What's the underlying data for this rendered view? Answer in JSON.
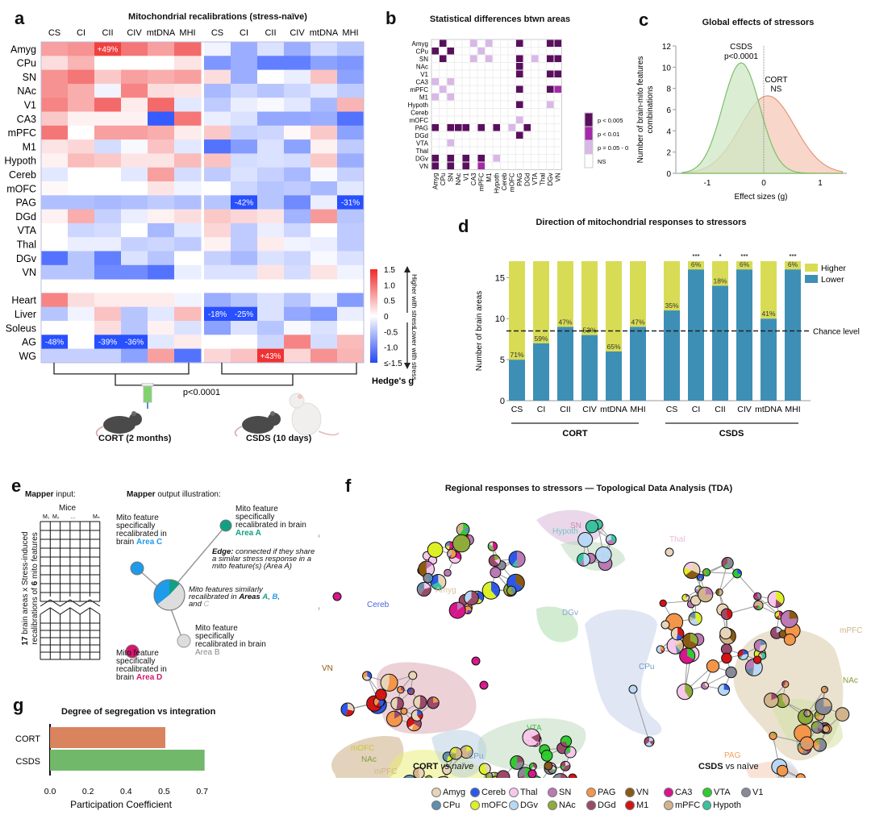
{
  "panels": {
    "a": {
      "label": "a",
      "title": "Mitochondrial recalibrations (stress-naïve)",
      "columns": [
        "CS",
        "CI",
        "CII",
        "CIV",
        "mtDNA",
        "MHI"
      ],
      "brain_rows": [
        "Amyg",
        "CPu",
        "SN",
        "NAc",
        "V1",
        "CA3",
        "mPFC",
        "M1",
        "Hypoth",
        "Cereb",
        "mOFC",
        "PAG",
        "DGd",
        "VTA",
        "Thal",
        "DGv",
        "VN"
      ],
      "body_rows": [
        "Heart",
        "Liver",
        "Soleus",
        "AG",
        "WG"
      ],
      "cort_values": [
        [
          0.7,
          0.8,
          1.4,
          1.0,
          0.7,
          1.1
        ],
        [
          0.25,
          0.55,
          0,
          0,
          0,
          0.2
        ],
        [
          0.8,
          1.0,
          0.4,
          0.7,
          0.6,
          0.7
        ],
        [
          0.8,
          0.6,
          -0.1,
          0.9,
          0.25,
          0.2
        ],
        [
          0.9,
          0.6,
          1.1,
          0.15,
          1.1,
          -0.2
        ],
        [
          0.4,
          0.1,
          0.1,
          0.1,
          -1.4,
          1.0
        ],
        [
          1.0,
          0,
          0.7,
          0.7,
          0.6,
          0.15
        ],
        [
          0.2,
          0.3,
          -0.3,
          -0.05,
          0.45,
          -0.2
        ],
        [
          0.1,
          0.5,
          0.4,
          0.2,
          0.2,
          0.5
        ],
        [
          -0.2,
          0,
          0,
          -0.2,
          0.7,
          -0.3
        ],
        [
          0.05,
          0,
          0,
          0,
          0.2,
          -0.1
        ],
        [
          -0.55,
          -0.55,
          -0.6,
          -0.55,
          -0.45,
          -0.55
        ],
        [
          0.1,
          0.6,
          -0.4,
          -0.15,
          0.1,
          0.25
        ],
        [
          0,
          -0.35,
          -0.3,
          0,
          -0.6,
          -0.2
        ],
        [
          0,
          -0.15,
          -0.15,
          -0.4,
          -0.35,
          -0.45
        ],
        [
          -1.2,
          -0.5,
          -1.1,
          -0.25,
          -0.5,
          0
        ],
        [
          -0.5,
          -0.5,
          -1.0,
          -1.0,
          -1.2,
          -0.15
        ],
        [
          0.9,
          0.25,
          0.15,
          0.15,
          0.15,
          -0.1
        ],
        [
          -0.5,
          -0.1,
          0.45,
          -0.5,
          -0.2,
          0.5
        ],
        [
          0,
          0,
          0.25,
          -0.5,
          0.1,
          -0.25
        ],
        [
          -1.5,
          0,
          -1.5,
          -1.5,
          -0.2,
          0.15
        ],
        [
          -0.4,
          -0.4,
          -0.4,
          -0.8,
          0.7,
          -1.2
        ]
      ],
      "csds_values": [
        [
          -0.1,
          -0.7,
          -0.25,
          -0.7,
          -0.3,
          -0.5
        ],
        [
          -0.9,
          -0.7,
          -1.1,
          -1.1,
          -0.8,
          -0.9
        ],
        [
          0.25,
          -0.7,
          0,
          -0.15,
          0.45,
          -0.8
        ],
        [
          -0.6,
          -0.35,
          -0.5,
          -0.35,
          -0.2,
          -0.45
        ],
        [
          -0.45,
          -0.15,
          -0.05,
          -0.2,
          -0.6,
          0.55
        ],
        [
          -0.15,
          -0.25,
          -0.75,
          -0.75,
          -0.7,
          -1.2
        ],
        [
          0.4,
          -0.4,
          -0.35,
          0.05,
          0.4,
          -0.8
        ],
        [
          -1.2,
          -0.85,
          -0.25,
          -0.8,
          0.1,
          -0.45
        ],
        [
          0.45,
          -0.3,
          -0.25,
          -0.3,
          0.4,
          -0.7
        ],
        [
          -0.45,
          -0.25,
          -0.4,
          -0.6,
          -0.05,
          -0.4
        ],
        [
          0,
          -0.35,
          -0.5,
          -0.45,
          -0.6,
          -0.2
        ],
        [
          -0.5,
          -1.5,
          -0.5,
          -1.0,
          -0.15,
          -1.5
        ],
        [
          0.4,
          0.3,
          0.2,
          -0.65,
          0.75,
          -0.5
        ],
        [
          0.3,
          -0.45,
          -0.15,
          -0.35,
          0,
          -0.45
        ],
        [
          0.1,
          -0.45,
          0.15,
          -0.1,
          -0.15,
          -0.45
        ],
        [
          -0.4,
          -0.6,
          -0.25,
          -0.35,
          -0.05,
          -0.25
        ],
        [
          -0.25,
          -0.25,
          0.2,
          -0.3,
          0.2,
          -0.1
        ],
        [
          -0.7,
          -0.5,
          -0.25,
          -0.5,
          -0.15,
          -0.85
        ],
        [
          -1.5,
          -1.5,
          -0.25,
          -0.75,
          -0.9,
          -0.15
        ],
        [
          -0.8,
          -0.25,
          -0.5,
          -0.05,
          -0.25,
          0
        ],
        [
          0,
          0,
          -0.35,
          0.9,
          -0.3,
          0.5
        ],
        [
          0.3,
          0.45,
          1.5,
          0.3,
          0.8,
          0.55
        ]
      ],
      "annotations": [
        {
          "group": "CORT",
          "row": "Amyg",
          "col": "CII",
          "text": "+49%"
        },
        {
          "group": "CSDS",
          "row": "PAG",
          "col": "CI",
          "text": "-42%"
        },
        {
          "group": "CSDS",
          "row": "PAG",
          "col": "MHI",
          "text": "-31%"
        },
        {
          "group": "CSDS",
          "row": "Liver",
          "col": "CS",
          "text": "-18%"
        },
        {
          "group": "CSDS",
          "row": "Liver",
          "col": "CI",
          "text": "-25%"
        },
        {
          "group": "CORT",
          "row": "AG",
          "col": "CS",
          "text": "-48%"
        },
        {
          "group": "CORT",
          "row": "AG",
          "col": "CII",
          "text": "-39%"
        },
        {
          "group": "CORT",
          "row": "AG",
          "col": "CIV",
          "text": "-36%"
        },
        {
          "group": "CSDS",
          "row": "WG",
          "col": "CII",
          "text": "+43%"
        }
      ],
      "colorbar": {
        "ticks": [
          "1.5",
          "1.0",
          "0.5",
          "0",
          "-0.5",
          "-1.0",
          "≤-1.5"
        ],
        "title": "Hedge's g",
        "higher": "Higher with stress",
        "lower": "Lower with stress"
      },
      "pvalue": "p<0.0001",
      "cort_label": "CORT (2 months)",
      "csds_label": "CSDS (10 days)"
    },
    "b": {
      "label": "b",
      "title": "Statistical differences btwn areas",
      "areas": [
        "Amyg",
        "CPu",
        "SN",
        "NAc",
        "V1",
        "CA3",
        "mPFC",
        "M1",
        "Hypoth",
        "Cereb",
        "mOFC",
        "PAG",
        "DGd",
        "VTA",
        "Thal",
        "DGv",
        "VN"
      ],
      "cells": [
        [
          0,
          1,
          3
        ],
        [
          0,
          5,
          1
        ],
        [
          0,
          7,
          1
        ],
        [
          0,
          11,
          3
        ],
        [
          0,
          15,
          3
        ],
        [
          0,
          16,
          3
        ],
        [
          1,
          0,
          3
        ],
        [
          1,
          2,
          3
        ],
        [
          1,
          6,
          1
        ],
        [
          2,
          1,
          3
        ],
        [
          2,
          5,
          1
        ],
        [
          2,
          7,
          1
        ],
        [
          2,
          11,
          3
        ],
        [
          2,
          13,
          1
        ],
        [
          2,
          15,
          3
        ],
        [
          2,
          16,
          3
        ],
        [
          3,
          11,
          3
        ],
        [
          4,
          11,
          3
        ],
        [
          4,
          15,
          3
        ],
        [
          4,
          16,
          3
        ],
        [
          5,
          0,
          1
        ],
        [
          5,
          2,
          1
        ],
        [
          6,
          1,
          1
        ],
        [
          6,
          11,
          3
        ],
        [
          6,
          15,
          3
        ],
        [
          6,
          16,
          2
        ],
        [
          7,
          0,
          1
        ],
        [
          7,
          2,
          1
        ],
        [
          8,
          11,
          3
        ],
        [
          8,
          15,
          1
        ],
        [
          10,
          11,
          1
        ],
        [
          11,
          0,
          3
        ],
        [
          11,
          2,
          3
        ],
        [
          11,
          3,
          3
        ],
        [
          11,
          4,
          3
        ],
        [
          11,
          6,
          3
        ],
        [
          11,
          8,
          3
        ],
        [
          11,
          10,
          1
        ],
        [
          11,
          12,
          3
        ],
        [
          12,
          11,
          3
        ],
        [
          13,
          2,
          1
        ],
        [
          15,
          0,
          3
        ],
        [
          15,
          2,
          3
        ],
        [
          15,
          4,
          3
        ],
        [
          15,
          6,
          3
        ],
        [
          15,
          8,
          1
        ],
        [
          16,
          0,
          3
        ],
        [
          16,
          2,
          3
        ],
        [
          16,
          4,
          3
        ],
        [
          16,
          6,
          2
        ]
      ],
      "legend": [
        "p < 0.005",
        "p < 0.01",
        "p = 0.05 - 0.01",
        "NS"
      ],
      "colors": [
        "#5a0f5e",
        "#a52aa8",
        "#d9b8e8",
        "#ffffff"
      ]
    },
    "c": {
      "label": "c",
      "title": "Global effects of stressors"
    },
    "d": {
      "label": "d",
      "title": "Direction of mitochondrial responses to stressors"
    },
    "e": {
      "label": "e",
      "input_title_bold": "Mapper",
      "input_title_rest": " input:",
      "output_title_bold": "Mapper",
      "output_title_rest": " output illustration:",
      "mice_label": "Mice",
      "mice_cols": [
        "M₁",
        "M₂",
        "…",
        "Mₙ"
      ],
      "ylabel_line1_bold": "17",
      "ylabel_line1_rest": " brain areas x Stress-induced",
      "ylabel_line2_pre": "recalibrations of ",
      "ylabel_line2_bold": "6",
      "ylabel_line2_post": " mito features",
      "node_c": {
        "text": "Mito feature specifically recalibrated in brain",
        "area": "Area C",
        "color": "#1e9be9"
      },
      "node_a": {
        "text": "Mito feature specifically recalibrated in brain",
        "area": "Area A",
        "color": "#12a085"
      },
      "node_b": {
        "text": "Mito feature specifically recalibrated in brain",
        "area": "Area B",
        "color": "#cccccc"
      },
      "node_d": {
        "text": "Mito feature specifically recalibrated in brain",
        "area": "Area D",
        "color": "#d4166f"
      },
      "edge_bold": "Edge:",
      "edge_text": " connected if they share a similar stress response in a mito feature(s) (Area A)",
      "center_text": "Mito features similarly recalibrated in ",
      "center_bold": "Areas",
      "center_a": "A",
      "center_b": "B",
      "center_and": ", and ",
      "center_c": "C"
    },
    "f": {
      "label": "f",
      "title": "Regional responses to stressors — Topological Data Analysis (TDA)",
      "cort_caption_bold": "CORT",
      "cort_caption_rest": " vs naïve",
      "csds_caption_bold": "CSDS",
      "csds_caption_rest": " vs naïve",
      "cort_region_labels": [
        {
          "text": "SN",
          "color": "#c48ab8"
        },
        {
          "text": "Hypoth",
          "color": "#6fc7c7"
        },
        {
          "text": "Amyg",
          "color": "#d8c2a0"
        },
        {
          "text": "Cereb",
          "color": "#4867d6"
        },
        {
          "text": "DGv",
          "color": "#8aa6cc"
        },
        {
          "text": "VN",
          "color": "#8b5a14"
        },
        {
          "text": "VTA",
          "color": "#4cbb4c"
        },
        {
          "text": "Thal",
          "color": "#efb7dd"
        },
        {
          "text": "mOFC",
          "color": "#c6c734"
        },
        {
          "text": "NAc",
          "color": "#8a9a3a"
        },
        {
          "text": "mPFC",
          "color": "#d2b48c"
        },
        {
          "text": "CPu",
          "color": "#6e9fbf"
        }
      ],
      "csds_region_labels": [
        {
          "text": "Thal",
          "color": "#efb7dd"
        },
        {
          "text": "CPu",
          "color": "#6e9fbf"
        },
        {
          "text": "mPFC",
          "color": "#d2b48c"
        },
        {
          "text": "NAc",
          "color": "#8a9a3a"
        },
        {
          "text": "PAG",
          "color": "#f0a060"
        },
        {
          "text": "DGv",
          "color": "#8aa6cc"
        }
      ],
      "legend": [
        {
          "name": "Amyg",
          "color": "#e8d5b8"
        },
        {
          "name": "Cereb",
          "color": "#2b58e8"
        },
        {
          "name": "Thal",
          "color": "#f8c8ec"
        },
        {
          "name": "SN",
          "color": "#bb79b5"
        },
        {
          "name": "PAG",
          "color": "#f4964a"
        },
        {
          "name": "VN",
          "color": "#8a5a12"
        },
        {
          "name": "CA3",
          "color": "#d6168b"
        },
        {
          "name": "VTA",
          "color": "#2ecc2e"
        },
        {
          "name": "V1",
          "color": "#878a96"
        },
        {
          "name": "CPu",
          "color": "#5e8faf"
        },
        {
          "name": "mOFC",
          "color": "#dcf026"
        },
        {
          "name": "DGv",
          "color": "#b9d8f5"
        },
        {
          "name": "NAc",
          "color": "#8fab3a"
        },
        {
          "name": "DGd",
          "color": "#9a4a6a"
        },
        {
          "name": "M1",
          "color": "#d41414"
        },
        {
          "name": "mPFC",
          "color": "#d2b48c"
        },
        {
          "name": "Hypoth",
          "color": "#38c2a0"
        }
      ]
    },
    "g": {
      "label": "g",
      "title": "Degree of segregation vs integration"
    }
  },
  "chart_data": [
    {
      "id": "c",
      "type": "area",
      "title": "Global effects of stressors",
      "xlabel": "Effect sizes (g)",
      "ylabel": "Number of brain-mito features combinations",
      "xlim": [
        -1.5,
        1.4
      ],
      "ylim": [
        0,
        12
      ],
      "xticks": [
        "-1",
        "0",
        "1"
      ],
      "yticks": [
        "0",
        "2",
        "4",
        "6",
        "8",
        "10",
        "12"
      ],
      "series": [
        {
          "name": "CSDS",
          "annotation": "p<0.0001",
          "mean": -0.4,
          "sd": 0.33,
          "peak": 10.4,
          "color": "#7bbf6a",
          "fill": "#cfe8c4"
        },
        {
          "name": "CORT",
          "annotation": "NS",
          "mean": 0.07,
          "sd": 0.48,
          "peak": 7.3,
          "color": "#e4957a",
          "fill": "#f5c9b8"
        }
      ],
      "reference_line_x": 0
    },
    {
      "id": "d",
      "type": "bar",
      "stacked": true,
      "title": "Direction of mitochondrial responses to stressors",
      "ylabel": "Number of brain areas",
      "ylim": [
        0,
        17
      ],
      "yticks": [
        "0",
        "5",
        "10",
        "15"
      ],
      "groups": [
        "CORT",
        "CSDS"
      ],
      "categories": [
        "CS",
        "CI",
        "CII",
        "CIV",
        "mtDNA",
        "MHI",
        "CS",
        "CI",
        "CII",
        "CIV",
        "mtDNA",
        "MHI"
      ],
      "series": [
        {
          "name": "Lower",
          "color": "#3e8fb5",
          "values": [
            5,
            7,
            9,
            8,
            6,
            9,
            11,
            16,
            14,
            16,
            10,
            16
          ]
        },
        {
          "name": "Higher",
          "color": "#d8dc55",
          "values": [
            12,
            10,
            8,
            9,
            11,
            8,
            6,
            1,
            3,
            1,
            7,
            1
          ]
        }
      ],
      "bar_labels": [
        "71%",
        "59%",
        "47%",
        "53%",
        "65%",
        "47%",
        "35%",
        "6%",
        "18%",
        "6%",
        "41%",
        "6%"
      ],
      "significance": [
        "",
        "",
        "",
        "",
        "",
        "",
        "",
        "***",
        "*",
        "***",
        "",
        "***"
      ],
      "chance_level": 8.5,
      "chance_label": "Chance level",
      "legend": [
        "Higher",
        "Lower"
      ],
      "legend_position": "top-right"
    },
    {
      "id": "g",
      "type": "bar",
      "orientation": "horizontal",
      "title": "Degree of segregation vs integration",
      "xlabel": "Participation Coefficient",
      "categories": [
        "CORT",
        "CSDS"
      ],
      "values": [
        0.47,
        0.63
      ],
      "colors": [
        "#d9845f",
        "#72b86a"
      ],
      "xticks": [
        "0.0",
        "0.2",
        "0.4",
        "0.5",
        "0.7"
      ],
      "xtick_positions": [
        0.0,
        0.155,
        0.31,
        0.465,
        0.62
      ],
      "xlim": [
        0,
        0.7
      ]
    }
  ]
}
